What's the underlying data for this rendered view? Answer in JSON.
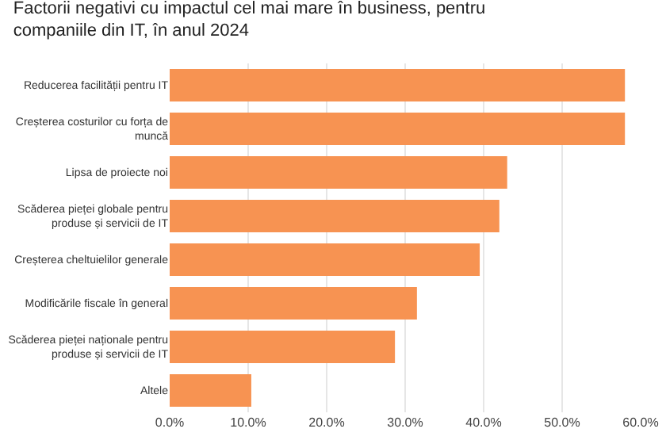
{
  "chart_data": {
    "type": "bar",
    "orientation": "horizontal",
    "title": "Factorii negativi cu impactul cel mai mare în business, pentru companiile din IT, în anul 2024",
    "categories": [
      "Reducerea facilității pentru IT",
      "Creșterea costurilor cu forța de muncă",
      "Lipsa de proiecte noi",
      "Scăderea pieței globale pentru produse și servicii de IT",
      "Creșterea cheltuielilor generale",
      "Modificările fiscale în general",
      "Scăderea pieței naționale pentru produse și servicii de IT",
      "Altele"
    ],
    "values": [
      58,
      58,
      43,
      42,
      39.5,
      31.5,
      28.7,
      10.4
    ],
    "color": "#f79352",
    "xlim": [
      0,
      60
    ],
    "xticks": [
      {
        "value": 0,
        "label": "0.0%"
      },
      {
        "value": 10,
        "label": "10.0%"
      },
      {
        "value": 20,
        "label": "20.0%"
      },
      {
        "value": 30,
        "label": "30.0%"
      },
      {
        "value": 40,
        "label": "40.0%"
      },
      {
        "value": 50,
        "label": "50.0%"
      },
      {
        "value": 60,
        "label": "60.0%"
      }
    ],
    "grid": "x",
    "legend": false
  }
}
